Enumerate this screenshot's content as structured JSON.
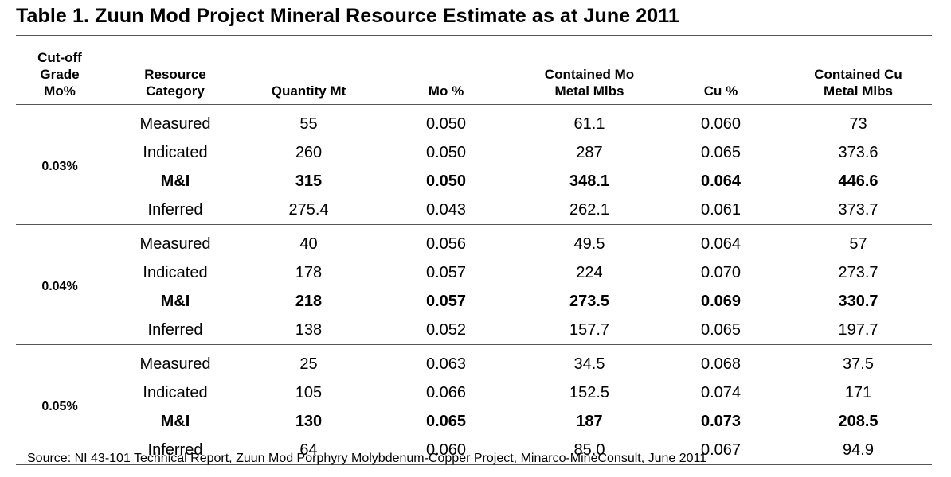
{
  "title": "Table 1. Zuun Mod Project Mineral Resource Estimate as at June 2011",
  "headers": {
    "cutoff": [
      "Cut-off",
      "Grade",
      "Mo%"
    ],
    "category": [
      "Resource",
      "Category"
    ],
    "quantity": [
      "Quantity Mt"
    ],
    "mo": [
      "Mo %"
    ],
    "contained_mo": [
      "Contained Mo",
      "Metal Mlbs"
    ],
    "cu": [
      "Cu %"
    ],
    "contained_cu": [
      "Contained Cu",
      "Metal Mlbs"
    ]
  },
  "groups": [
    {
      "cutoff": "0.03%",
      "rows": [
        {
          "category": "Measured",
          "quantity": "55",
          "mo": "0.050",
          "contained_mo": "61.1",
          "cu": "0.060",
          "contained_cu": "73"
        },
        {
          "category": "Indicated",
          "quantity": "260",
          "mo": "0.050",
          "contained_mo": "287",
          "cu": "0.065",
          "contained_cu": "373.6"
        },
        {
          "category": "M&I",
          "quantity": "315",
          "mo": "0.050",
          "contained_mo": "348.1",
          "cu": "0.064",
          "contained_cu": "446.6"
        },
        {
          "category": "Inferred",
          "quantity": "275.4",
          "mo": "0.043",
          "contained_mo": "262.1",
          "cu": "0.061",
          "contained_cu": "373.7"
        }
      ]
    },
    {
      "cutoff": "0.04%",
      "rows": [
        {
          "category": "Measured",
          "quantity": "40",
          "mo": "0.056",
          "contained_mo": "49.5",
          "cu": "0.064",
          "contained_cu": "57"
        },
        {
          "category": "Indicated",
          "quantity": "178",
          "mo": "0.057",
          "contained_mo": "224",
          "cu": "0.070",
          "contained_cu": "273.7"
        },
        {
          "category": "M&I",
          "quantity": "218",
          "mo": "0.057",
          "contained_mo": "273.5",
          "cu": "0.069",
          "contained_cu": "330.7"
        },
        {
          "category": "Inferred",
          "quantity": "138",
          "mo": "0.052",
          "contained_mo": "157.7",
          "cu": "0.065",
          "contained_cu": "197.7"
        }
      ]
    },
    {
      "cutoff": "0.05%",
      "rows": [
        {
          "category": "Measured",
          "quantity": "25",
          "mo": "0.063",
          "contained_mo": "34.5",
          "cu": "0.068",
          "contained_cu": "37.5"
        },
        {
          "category": "Indicated",
          "quantity": "105",
          "mo": "0.066",
          "contained_mo": "152.5",
          "cu": "0.074",
          "contained_cu": "171"
        },
        {
          "category": "M&I",
          "quantity": "130",
          "mo": "0.065",
          "contained_mo": "187",
          "cu": "0.073",
          "contained_cu": "208.5"
        },
        {
          "category": "Inferred",
          "quantity": "64",
          "mo": "0.060",
          "contained_mo": "85.0",
          "cu": "0.067",
          "contained_cu": "94.9"
        }
      ]
    }
  ],
  "source": "Source: NI 43-101 Technical Report, Zuun Mod Porphyry Molybdenum-Copper Project, Minarco-MineConsult, June 2011"
}
